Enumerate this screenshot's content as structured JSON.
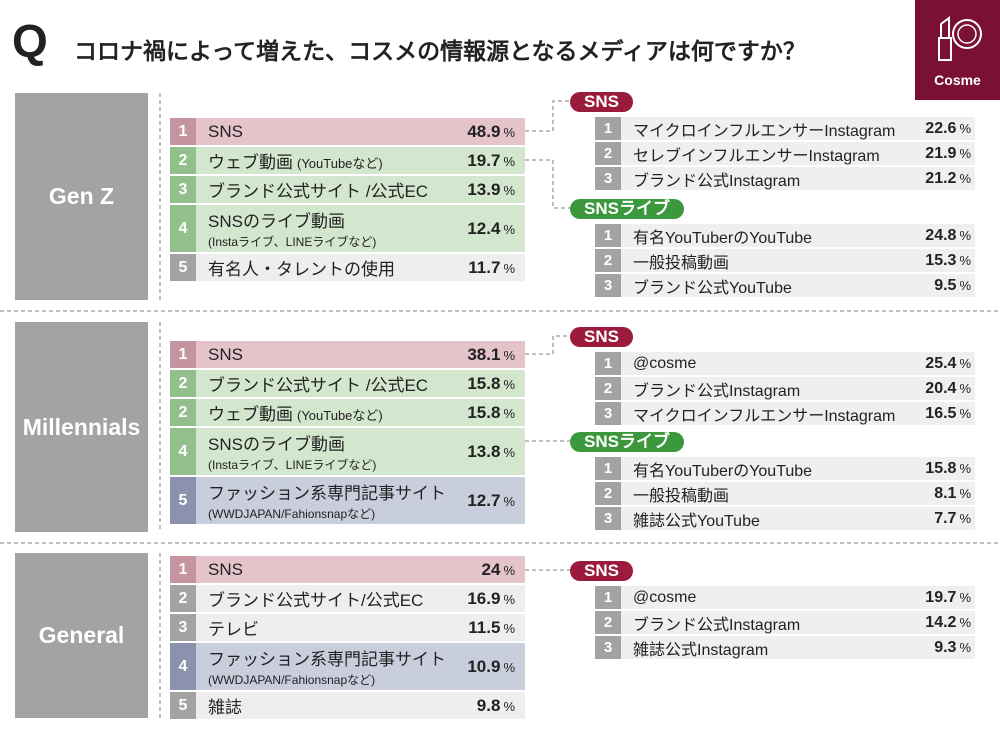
{
  "header": {
    "q": "Q",
    "title": "コロナ禍によって増えた、コスメの情報源となるメディアは何ですか？",
    "badge": "Cosme"
  },
  "unit": "%",
  "sections": [
    {
      "label": "Gen Z",
      "rows": [
        {
          "rank": "1",
          "text": "SNS",
          "value": 48.9,
          "color": "#e5c3cb",
          "rank_color": "#c6949f"
        },
        {
          "rank": "2",
          "text": "ウェブ動画",
          "note": "(YouTubeなど)",
          "value": 19.7,
          "color": "#d3e7cf",
          "rank_color": "#92bf8c"
        },
        {
          "rank": "3",
          "text": "ブランド公式サイト /公式EC",
          "value": 13.9,
          "color": "#d3e7cf",
          "rank_color": "#92bf8c"
        },
        {
          "rank": "4",
          "text": "SNSのライブ動画",
          "sub": "(Instaライブ、LINEライブなど)",
          "value": 12.4,
          "color": "#d3e7cf",
          "rank_color": "#92bf8c"
        },
        {
          "rank": "5",
          "text": "有名人・タレントの使用",
          "value": 11.7,
          "color": "#eeeeee",
          "rank_color": "#a3a3a3"
        }
      ],
      "details": [
        {
          "label": "SNS",
          "color": "#9b1b3c",
          "rows": [
            {
              "rank": "1",
              "text": "マイクロインフルエンサーInstagram",
              "value": 22.6
            },
            {
              "rank": "2",
              "text": "セレブインフルエンサーInstagram",
              "value": 21.9
            },
            {
              "rank": "3",
              "text": "ブランド公式Instagram",
              "value": 21.2
            }
          ]
        },
        {
          "label": "SNSライブ",
          "color": "#3b983d",
          "rows": [
            {
              "rank": "1",
              "text": "有名YouTuberのYouTube",
              "value": 24.8
            },
            {
              "rank": "2",
              "text": "一般投稿動画",
              "value": 15.3
            },
            {
              "rank": "3",
              "text": "ブランド公式YouTube",
              "value": 9.5
            }
          ]
        }
      ]
    },
    {
      "label": "Millennials",
      "rows": [
        {
          "rank": "1",
          "text": "SNS",
          "value": 38.1,
          "color": "#e5c3cb",
          "rank_color": "#c6949f"
        },
        {
          "rank": "2",
          "text": "ブランド公式サイト /公式EC",
          "value": 15.8,
          "color": "#d3e7cf",
          "rank_color": "#92bf8c"
        },
        {
          "rank": "2",
          "text": "ウェブ動画",
          "note": "(YouTubeなど)",
          "value": 15.8,
          "color": "#d3e7cf",
          "rank_color": "#92bf8c"
        },
        {
          "rank": "4",
          "text": "SNSのライブ動画",
          "sub": "(Instaライブ、LINEライブなど)",
          "value": 13.8,
          "color": "#d3e7cf",
          "rank_color": "#92bf8c"
        },
        {
          "rank": "5",
          "text": "ファッション系専門記事サイト",
          "sub": "(WWDJAPAN/Fahionsnapなど)",
          "value": 12.7,
          "color": "#c9cedd",
          "rank_color": "#8a92ad"
        }
      ],
      "details": [
        {
          "label": "SNS",
          "color": "#9b1b3c",
          "rows": [
            {
              "rank": "1",
              "text": "@cosme",
              "value": 25.4
            },
            {
              "rank": "2",
              "text": "ブランド公式Instagram",
              "value": 20.4
            },
            {
              "rank": "3",
              "text": "マイクロインフルエンサーInstagram",
              "value": 16.5
            }
          ]
        },
        {
          "label": "SNSライブ",
          "color": "#3b983d",
          "rows": [
            {
              "rank": "1",
              "text": "有名YouTuberのYouTube",
              "value": 15.8
            },
            {
              "rank": "2",
              "text": "一般投稿動画",
              "value": 8.1
            },
            {
              "rank": "3",
              "text": "雑誌公式YouTube",
              "value": 7.7
            }
          ]
        }
      ]
    },
    {
      "label": "General",
      "rows": [
        {
          "rank": "1",
          "text": "SNS",
          "value": 24.0,
          "color": "#e5c3cb",
          "rank_color": "#c6949f"
        },
        {
          "rank": "2",
          "text": "ブランド公式サイト/公式EC",
          "value": 16.9,
          "color": "#eeeeee",
          "rank_color": "#a3a3a3"
        },
        {
          "rank": "3",
          "text": "テレビ",
          "value": 11.5,
          "color": "#eeeeee",
          "rank_color": "#a3a3a3"
        },
        {
          "rank": "4",
          "text": "ファッション系専門記事サイト",
          "sub": "(WWDJAPAN/Fahionsnapなど)",
          "value": 10.9,
          "color": "#c9cedd",
          "rank_color": "#8a92ad"
        },
        {
          "rank": "5",
          "text": "雑誌",
          "value": 9.8,
          "color": "#eeeeee",
          "rank_color": "#a3a3a3"
        }
      ],
      "details": [
        {
          "label": "SNS",
          "color": "#9b1b3c",
          "rows": [
            {
              "rank": "1",
              "text": "@cosme",
              "value": 19.7
            },
            {
              "rank": "2",
              "text": "ブランド公式Instagram",
              "value": 14.2
            },
            {
              "rank": "3",
              "text": "雑誌公式Instagram",
              "value": 9.3
            }
          ]
        }
      ]
    }
  ]
}
